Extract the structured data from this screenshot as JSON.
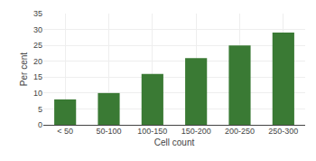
{
  "chart_data": {
    "type": "bar",
    "categories": [
      "< 50",
      "50-100",
      "100-150",
      "150-200",
      "200-250",
      "250-300"
    ],
    "values": [
      8,
      10,
      16,
      21,
      25,
      29
    ],
    "color": "#3a7a34",
    "xlabel": "Cell count",
    "ylabel": "Per cent",
    "ylim": [
      0,
      35
    ],
    "yticks": [
      0,
      5,
      10,
      15,
      20,
      25,
      30,
      35
    ],
    "grid": true
  }
}
